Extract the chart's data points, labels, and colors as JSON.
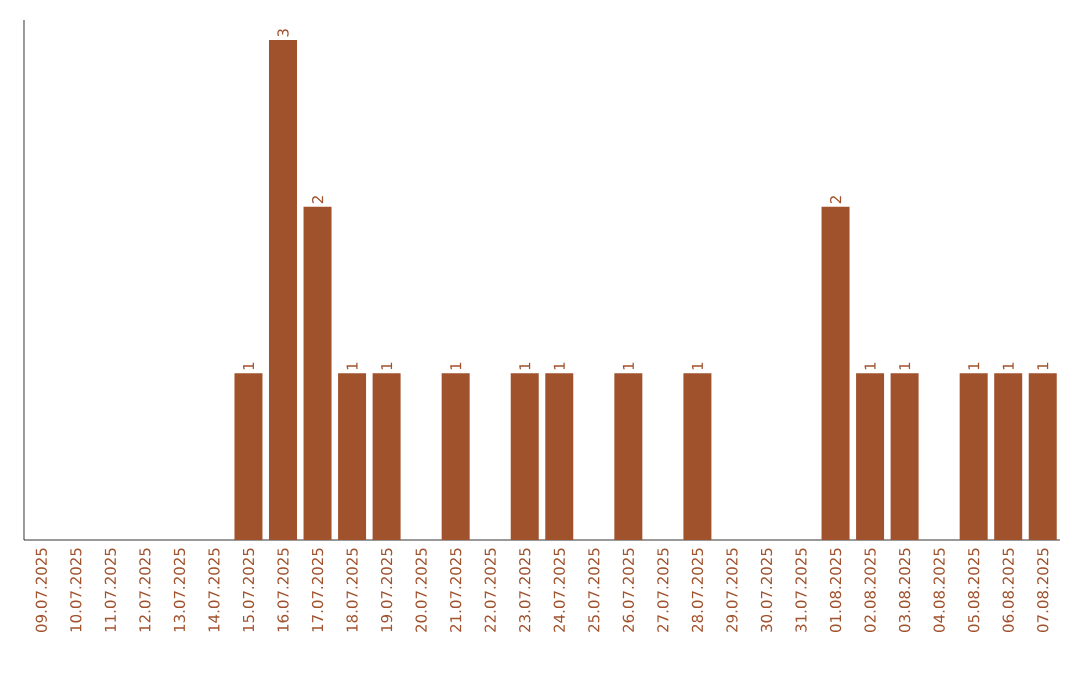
{
  "chart_data": {
    "type": "bar",
    "categories": [
      "09.07.2025",
      "10.07.2025",
      "11.07.2025",
      "12.07.2025",
      "13.07.2025",
      "14.07.2025",
      "15.07.2025",
      "16.07.2025",
      "17.07.2025",
      "18.07.2025",
      "19.07.2025",
      "20.07.2025",
      "21.07.2025",
      "22.07.2025",
      "23.07.2025",
      "24.07.2025",
      "25.07.2025",
      "26.07.2025",
      "27.07.2025",
      "28.07.2025",
      "29.07.2025",
      "30.07.2025",
      "31.07.2025",
      "01.08.2025",
      "02.08.2025",
      "03.08.2025",
      "04.08.2025",
      "05.08.2025",
      "06.08.2025",
      "07.08.2025"
    ],
    "values": [
      0,
      0,
      0,
      0,
      0,
      0,
      1,
      3,
      2,
      1,
      1,
      0,
      1,
      0,
      1,
      1,
      0,
      1,
      0,
      1,
      0,
      0,
      0,
      2,
      1,
      1,
      0,
      1,
      1,
      1
    ],
    "value_labels": [
      null,
      null,
      null,
      null,
      null,
      null,
      "1",
      "3",
      "2",
      "1",
      "1",
      null,
      "1",
      null,
      "1",
      "1",
      null,
      "1",
      null,
      "1",
      null,
      null,
      null,
      "2",
      "1",
      "1",
      null,
      "1",
      "1",
      "1"
    ],
    "color": "#a0522d",
    "tick_labels": "x",
    "grid": false
  }
}
